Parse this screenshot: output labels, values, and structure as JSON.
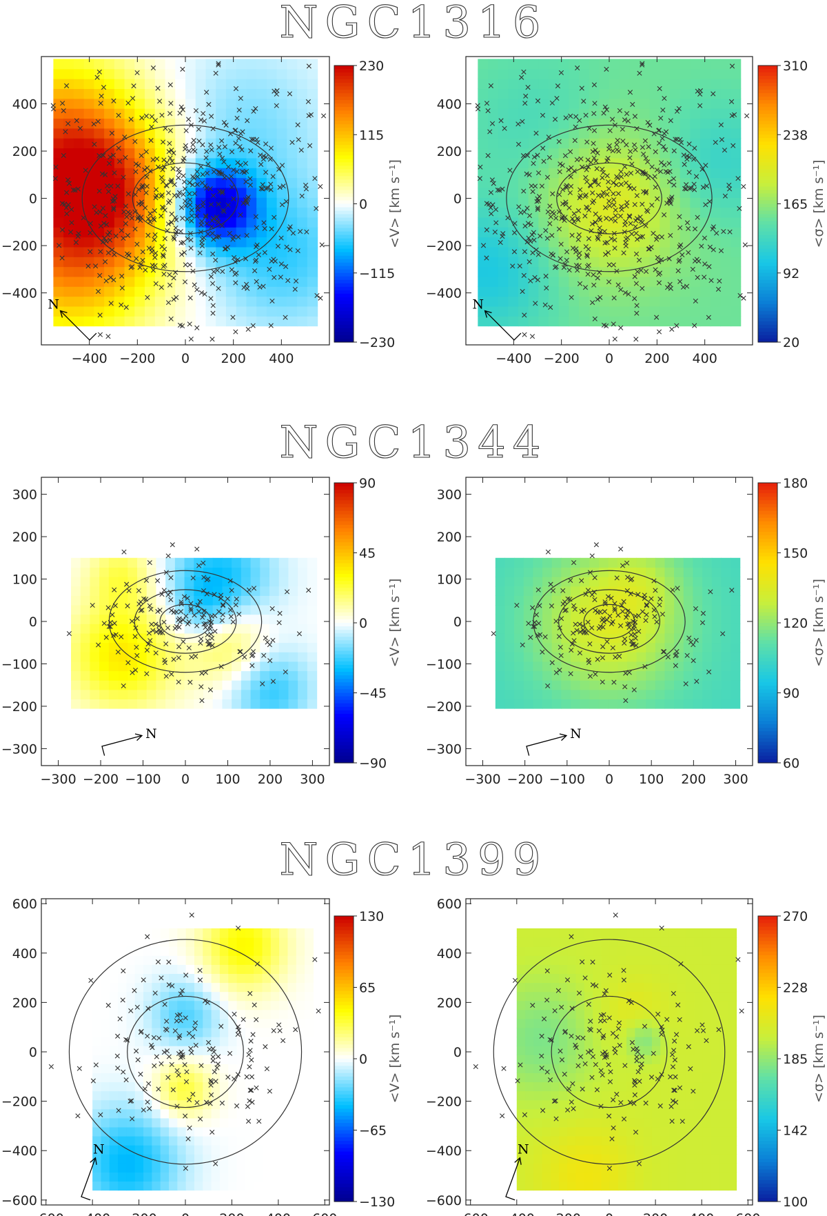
{
  "colormap": [
    "#00008f",
    "#0000ff",
    "#00bfff",
    "#ffffff",
    "#ffff00",
    "#ff8000",
    "#cc0000"
  ],
  "sigma_colormap": [
    "#0a1fa0",
    "#0b7fd6",
    "#18c7e6",
    "#5fe0a8",
    "#c8ef3c",
    "#ffe100",
    "#ff8c00",
    "#e61e0a"
  ],
  "chart_data": [
    {
      "galaxy": "NGC1316",
      "map": "mean velocity",
      "type": "heatmap",
      "cbar_label": "<V> [km s⁻¹]",
      "cbar_ticks": [
        "230",
        "115",
        "0",
        "−115",
        "−230"
      ],
      "vmin": -230,
      "vmax": 230,
      "xlim": [
        -600,
        600
      ],
      "ylim": [
        -620,
        600
      ],
      "xticks": [
        "−400",
        "−200",
        "0",
        "200",
        "400"
      ],
      "yticks": [
        "400",
        "200",
        "0",
        "−200",
        "−400"
      ],
      "xtick_values": [
        -400,
        -200,
        0,
        200,
        400
      ],
      "ytick_values": [
        400,
        200,
        0,
        -200,
        -400
      ],
      "grid_extent": [
        -550,
        550,
        -540,
        590
      ],
      "sources": [
        {
          "x": -520,
          "y": 230,
          "v": 160,
          "s": 250
        },
        {
          "x": -480,
          "y": -250,
          "v": 140,
          "s": 250
        },
        {
          "x": -300,
          "y": 30,
          "v": 110,
          "s": 200
        },
        {
          "x": -50,
          "y": 50,
          "v": 0,
          "s": 150
        },
        {
          "x": 120,
          "y": -30,
          "v": -170,
          "s": 120
        },
        {
          "x": 250,
          "y": 300,
          "v": -40,
          "s": 250
        },
        {
          "x": 400,
          "y": -250,
          "v": -60,
          "s": 220
        }
      ],
      "ellipses": [
        {
          "a": 220,
          "b": 150
        },
        {
          "a": 430,
          "b": 310
        }
      ],
      "n_points": 620,
      "point_spread": [
        300,
        260
      ],
      "north_label": "N",
      "north_arrow_deg": 135
    },
    {
      "galaxy": "NGC1316",
      "map": "velocity dispersion",
      "type": "heatmap",
      "cbar_label": "<σ> [km s⁻¹]",
      "cbar_ticks": [
        "310",
        "238",
        "165",
        "92",
        "20"
      ],
      "vmin": 20,
      "vmax": 310,
      "base": 150,
      "xlim": [
        -600,
        600
      ],
      "ylim": [
        -620,
        600
      ],
      "xticks": [
        "−400",
        "−200",
        "0",
        "200",
        "400"
      ],
      "yticks": [
        "400",
        "200",
        "0",
        "−200",
        "−400"
      ],
      "xtick_values": [
        -400,
        -200,
        0,
        200,
        400
      ],
      "ytick_values": [
        400,
        200,
        0,
        -200,
        -400
      ],
      "grid_extent": [
        -550,
        550,
        -540,
        590
      ],
      "sources": [
        {
          "x": 0,
          "y": -30,
          "v": 55,
          "s": 220
        },
        {
          "x": -500,
          "y": -300,
          "v": -45,
          "s": 200
        },
        {
          "x": 450,
          "y": 150,
          "v": -30,
          "s": 180
        },
        {
          "x": -300,
          "y": 300,
          "v": -20,
          "s": 200
        }
      ],
      "ellipses": [
        {
          "a": 220,
          "b": 150
        },
        {
          "a": 430,
          "b": 310
        }
      ],
      "n_points": 620,
      "point_spread": [
        300,
        260
      ],
      "north_label": "N",
      "north_arrow_deg": 135
    },
    {
      "galaxy": "NGC1344",
      "map": "mean velocity",
      "type": "heatmap",
      "cbar_label": "<V> [km s⁻¹]",
      "cbar_ticks": [
        "90",
        "45",
        "0",
        "−45",
        "−90"
      ],
      "vmin": -90,
      "vmax": 90,
      "xlim": [
        -340,
        340
      ],
      "ylim": [
        -340,
        340
      ],
      "xticks": [
        "−300",
        "−200",
        "−100",
        "0",
        "100",
        "200",
        "300"
      ],
      "yticks": [
        "300",
        "200",
        "100",
        "0",
        "−100",
        "−200",
        "−300"
      ],
      "xtick_values": [
        -300,
        -200,
        -100,
        0,
        100,
        200,
        300
      ],
      "ytick_values": [
        300,
        200,
        100,
        0,
        -100,
        -200,
        -300
      ],
      "grid_extent": [
        -270,
        310,
        -205,
        150
      ],
      "sources": [
        {
          "x": -150,
          "y": -80,
          "v": 35,
          "s": 90
        },
        {
          "x": 100,
          "y": -50,
          "v": 25,
          "s": 70
        },
        {
          "x": 80,
          "y": 100,
          "v": -30,
          "s": 90
        },
        {
          "x": 200,
          "y": -160,
          "v": -25,
          "s": 70
        },
        {
          "x": -150,
          "y": 110,
          "v": 20,
          "s": 60
        },
        {
          "x": 40,
          "y": 20,
          "v": -15,
          "s": 50
        }
      ],
      "ellipses": [
        {
          "a": 60,
          "b": 40
        },
        {
          "a": 120,
          "b": 75
        },
        {
          "a": 180,
          "b": 120
        }
      ],
      "n_points": 190,
      "point_spread": [
        110,
        70
      ],
      "north_label": "N",
      "north_arrow_deg": 15
    },
    {
      "galaxy": "NGC1344",
      "map": "velocity dispersion",
      "type": "heatmap",
      "cbar_label": "<σ> [km s⁻¹]",
      "cbar_ticks": [
        "180",
        "150",
        "120",
        "90",
        "60"
      ],
      "vmin": 60,
      "vmax": 180,
      "base": 105,
      "xlim": [
        -340,
        340
      ],
      "ylim": [
        -340,
        340
      ],
      "xticks": [
        "−300",
        "−200",
        "−100",
        "0",
        "100",
        "200",
        "300"
      ],
      "yticks": [
        "300",
        "200",
        "100",
        "0",
        "−100",
        "−200",
        "−300"
      ],
      "xtick_values": [
        -300,
        -200,
        -100,
        0,
        100,
        200,
        300
      ],
      "ytick_values": [
        300,
        200,
        100,
        0,
        -100,
        -200,
        -300
      ],
      "grid_extent": [
        -270,
        310,
        -205,
        150
      ],
      "sources": [
        {
          "x": 0,
          "y": 0,
          "v": 30,
          "s": 130
        },
        {
          "x": 80,
          "y": 100,
          "v": 8,
          "s": 60
        }
      ],
      "ellipses": [
        {
          "a": 60,
          "b": 40
        },
        {
          "a": 120,
          "b": 75
        },
        {
          "a": 180,
          "b": 120
        }
      ],
      "n_points": 190,
      "point_spread": [
        110,
        70
      ],
      "north_label": "N",
      "north_arrow_deg": 15
    },
    {
      "galaxy": "NGC1399",
      "map": "mean velocity",
      "type": "heatmap",
      "cbar_label": "<V> [km s⁻¹]",
      "cbar_ticks": [
        "130",
        "65",
        "0",
        "−65",
        "−130"
      ],
      "vmin": -130,
      "vmax": 130,
      "xlim": [
        -620,
        620
      ],
      "ylim": [
        -620,
        620
      ],
      "xticks": [
        "−600",
        "−400",
        "−200",
        "0",
        "200",
        "400",
        "600"
      ],
      "yticks": [
        "600",
        "400",
        "200",
        "0",
        "−200",
        "−400",
        "−600"
      ],
      "xtick_values": [
        -600,
        -400,
        -200,
        0,
        200,
        400,
        600
      ],
      "ytick_values": [
        600,
        400,
        200,
        0,
        -200,
        -400,
        -600
      ],
      "grid_extent": [
        -400,
        550,
        -560,
        500
      ],
      "sources": [
        {
          "x": 250,
          "y": 430,
          "v": 45,
          "s": 130
        },
        {
          "x": -250,
          "y": -450,
          "v": -45,
          "s": 160
        },
        {
          "x": 0,
          "y": 150,
          "v": -30,
          "s": 110
        },
        {
          "x": -10,
          "y": -150,
          "v": 35,
          "s": 90
        }
      ],
      "ellipses": [
        {
          "a": 250,
          "b": 225
        },
        {
          "a": 500,
          "b": 455
        }
      ],
      "n_points": 170,
      "point_spread": [
        220,
        210
      ],
      "north_label": "N",
      "north_arrow_deg": 70
    },
    {
      "galaxy": "NGC1399",
      "map": "velocity dispersion",
      "type": "heatmap",
      "cbar_label": "<σ> [km s⁻¹]",
      "cbar_ticks": [
        "270",
        "228",
        "185",
        "142",
        "100"
      ],
      "vmin": 100,
      "vmax": 270,
      "base": 200,
      "xlim": [
        -620,
        620
      ],
      "ylim": [
        -620,
        620
      ],
      "xticks": [
        "−600",
        "−400",
        "−200",
        "0",
        "200",
        "400",
        "600"
      ],
      "yticks": [
        "600",
        "400",
        "200",
        "0",
        "−200",
        "−400",
        "−600"
      ],
      "xtick_values": [
        -600,
        -400,
        -200,
        0,
        200,
        400,
        600
      ],
      "ytick_values": [
        600,
        400,
        200,
        0,
        -200,
        -400,
        -600
      ],
      "grid_extent": [
        -400,
        550,
        -560,
        500
      ],
      "sources": [
        {
          "x": -300,
          "y": 50,
          "v": -20,
          "s": 170
        },
        {
          "x": 150,
          "y": 50,
          "v": -22,
          "s": 60
        },
        {
          "x": -100,
          "y": -500,
          "v": 15,
          "s": 150
        },
        {
          "x": 100,
          "y": 150,
          "v": 10,
          "s": 110
        }
      ],
      "ellipses": [
        {
          "a": 250,
          "b": 225
        },
        {
          "a": 500,
          "b": 455
        }
      ],
      "n_points": 170,
      "point_spread": [
        220,
        210
      ],
      "north_label": "N",
      "north_arrow_deg": 70
    }
  ]
}
